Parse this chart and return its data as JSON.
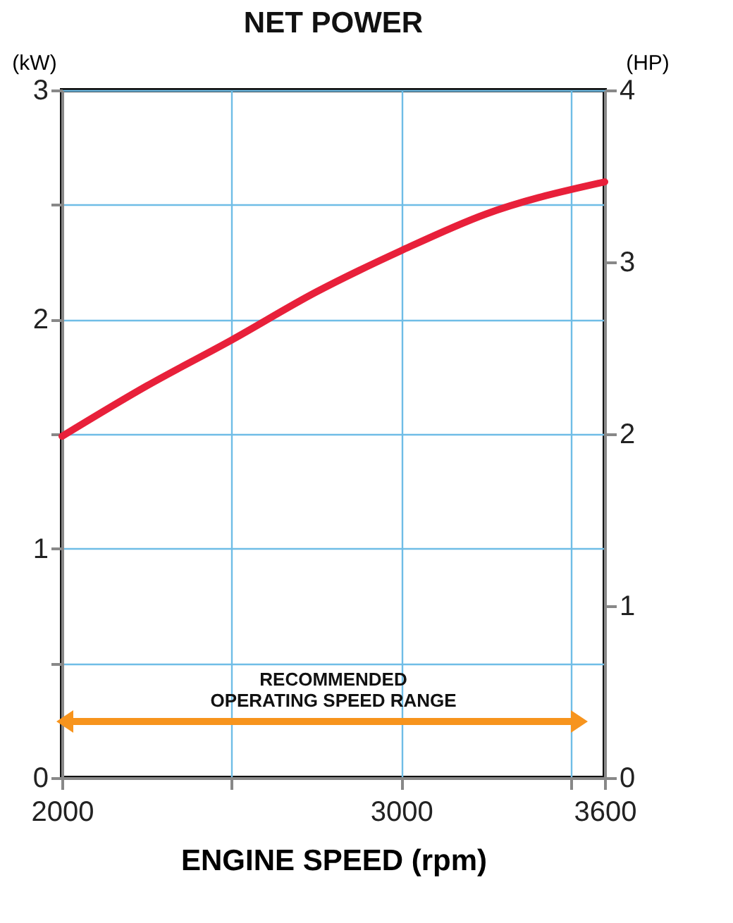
{
  "chart_data": {
    "type": "line",
    "title": "NET POWER",
    "xlabel": "ENGINE SPEED (rpm)",
    "ylabel": "(kW)",
    "y2label": "(HP)",
    "x": [
      2000,
      2250,
      2500,
      2750,
      3000,
      3250,
      3600
    ],
    "series": [
      {
        "color": "#e8203a",
        "values": [
          1.49,
          1.71,
          1.91,
          2.12,
          2.3,
          2.46,
          2.6
        ]
      }
    ],
    "xlim": [
      2000,
      3600
    ],
    "xticks": [
      2000,
      {
        "value": 2500,
        "label": null
      },
      3000,
      {
        "value": 3500,
        "label": null
      },
      3600
    ],
    "ylim": [
      0,
      3
    ],
    "yticks": [
      0,
      {
        "value": 0.5,
        "label": null
      },
      1,
      {
        "value": 1.5,
        "label": null
      },
      2,
      {
        "value": 2.5,
        "label": null
      },
      3
    ],
    "y2lim": [
      0,
      4
    ],
    "y2ticks": [
      0,
      1,
      2,
      3,
      4
    ],
    "grid": true,
    "annotations": [
      "RECOMMENDED\nOPERATING SPEED RANGE"
    ]
  }
}
